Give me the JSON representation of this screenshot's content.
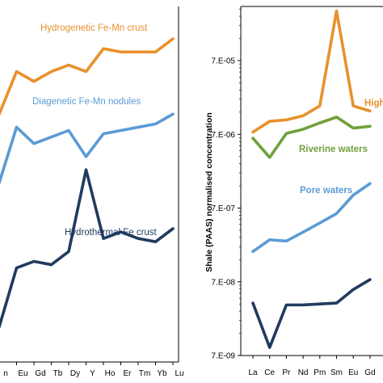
{
  "chart_data": [
    {
      "type": "line",
      "panel": "left",
      "x_categories": [
        "n",
        "Eu",
        "Gd",
        "Tb",
        "Dy",
        "Y",
        "Ho",
        "Er",
        "Tm",
        "Yb",
        "Lu"
      ],
      "series": [
        {
          "name": "Hydrogenetic Fe-Mn crust",
          "color": "#E8912B",
          "values": [
            0.75,
            0.88,
            0.85,
            0.88,
            0.9,
            0.88,
            0.95,
            0.94,
            0.94,
            0.94,
            0.98
          ]
        },
        {
          "name": "Diagenetic Fe-Mn nodules",
          "color": "#5B9BD5",
          "values": [
            0.54,
            0.71,
            0.66,
            0.68,
            0.7,
            0.62,
            0.69,
            0.7,
            0.71,
            0.72,
            0.75
          ]
        },
        {
          "name": "Hydrothermal Fe crust",
          "color": "#1F3B5E",
          "values": [
            0.1,
            0.28,
            0.3,
            0.29,
            0.33,
            0.58,
            0.37,
            0.39,
            0.37,
            0.36,
            0.4
          ]
        }
      ]
    },
    {
      "type": "line",
      "panel": "right",
      "yscale": "log",
      "ylabel": "Shale (PAAS) normalised concentration",
      "y_ticks": [
        "7.E-05",
        "7.E-06",
        "7.E-07",
        "7.E-08",
        "7.E-09"
      ],
      "y_tick_values": [
        7e-05,
        7e-06,
        7e-07,
        7e-08,
        7e-09
      ],
      "ylim": [
        7e-09,
        0.00035
      ],
      "x_categories": [
        "La",
        "Ce",
        "Pr",
        "Nd",
        "Pm",
        "Sm",
        "Eu",
        "Gd"
      ],
      "series": [
        {
          "name": "High",
          "color": "#E8912B",
          "values": [
            7.5e-06,
            1.05e-05,
            1.1e-05,
            1.25e-05,
            1.7e-05,
            0.00033,
            1.7e-05,
            1.45e-05
          ]
        },
        {
          "name": "Riverine waters",
          "color": "#70A03C",
          "values": [
            6.2e-06,
            3.4e-06,
            7.2e-06,
            8.2e-06,
            1e-05,
            1.2e-05,
            8.5e-06,
            9e-06
          ]
        },
        {
          "name": "Pore waters",
          "color": "#5B9BD5",
          "values": [
            1.8e-07,
            2.6e-07,
            2.5e-07,
            3.3e-07,
            4.4e-07,
            5.9e-07,
            1.05e-06,
            1.5e-06
          ]
        },
        {
          "name": "",
          "color": "#1F3B5E",
          "values": [
            3.6e-08,
            9e-09,
            3.4e-08,
            3.4e-08,
            3.5e-08,
            3.6e-08,
            5.5e-08,
            7.5e-08
          ]
        }
      ]
    }
  ]
}
